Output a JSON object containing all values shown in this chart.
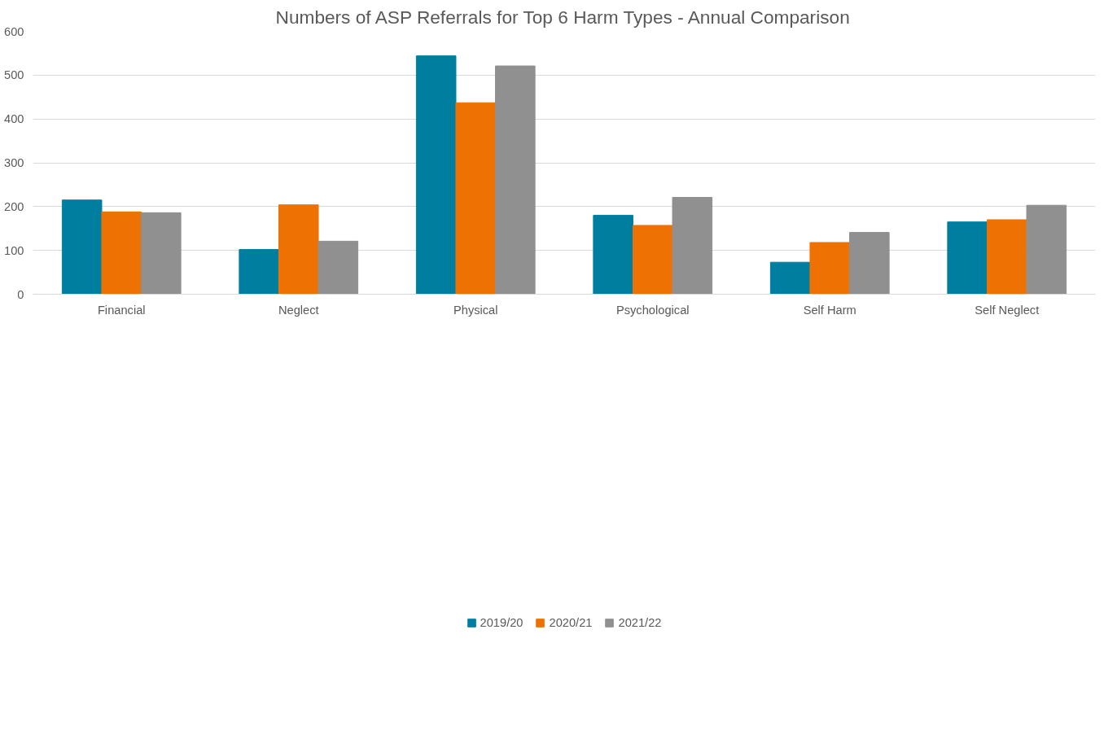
{
  "chart_data": {
    "type": "bar",
    "title": "Numbers of ASP Referrals for Top 6 Harm Types - Annual Comparison",
    "categories": [
      "Financial",
      "Neglect",
      "Physical",
      "Psychological",
      "Self Harm",
      "Self Neglect"
    ],
    "series": [
      {
        "name": "2019/20",
        "color": "#007ea0",
        "values": [
          215,
          102,
          544,
          180,
          73,
          165
        ]
      },
      {
        "name": "2020/21",
        "color": "#ed7203",
        "values": [
          188,
          204,
          437,
          157,
          118,
          170
        ]
      },
      {
        "name": "2021/22",
        "color": "#8f908f",
        "values": [
          186,
          121,
          521,
          221,
          141,
          203
        ]
      }
    ],
    "ylim": [
      0,
      600
    ],
    "yticks": [
      0,
      100,
      200,
      300,
      400,
      500,
      600
    ],
    "grid": "y",
    "legend": "bottom"
  }
}
